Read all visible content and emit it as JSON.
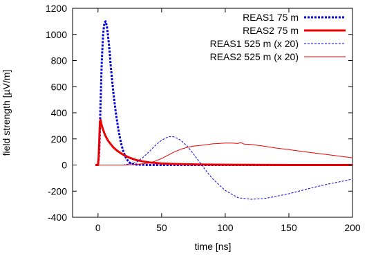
{
  "chart_data": {
    "type": "line",
    "title": "",
    "xlabel": "time [ns]",
    "ylabel": "field strength [µV/m]",
    "xlim": [
      -20,
      200
    ],
    "ylim": [
      -400,
      1200
    ],
    "xticks": [
      0,
      50,
      100,
      150,
      200
    ],
    "xtick_labels": [
      "0",
      "50",
      "100",
      "150",
      "200"
    ],
    "yticks": [
      -400,
      -200,
      0,
      200,
      400,
      600,
      800,
      1000,
      1200
    ],
    "ytick_labels": [
      "-400",
      "-200",
      "0",
      "200",
      "400",
      "600",
      "800",
      "1000",
      "1200"
    ],
    "grid": false,
    "legend_position": "top-right",
    "series": [
      {
        "name": "REAS1 75 m",
        "color": "#0000dd",
        "style": "dotted-thick",
        "x": [
          -2,
          0,
          0.5,
          1,
          1.5,
          2,
          3,
          4,
          5,
          6,
          7,
          8,
          9,
          10,
          12,
          14,
          16,
          18,
          20,
          22,
          24,
          26,
          30,
          40,
          60,
          80,
          100,
          150,
          200
        ],
        "y": [
          0,
          0,
          40,
          120,
          280,
          480,
          800,
          1000,
          1090,
          1100,
          1060,
          980,
          880,
          760,
          560,
          400,
          270,
          170,
          100,
          55,
          25,
          10,
          3,
          0,
          0,
          0,
          0,
          0,
          0
        ]
      },
      {
        "name": "REAS2 75 m",
        "color": "#ee0000",
        "style": "solid-thick",
        "x": [
          -2,
          0,
          0.5,
          1,
          1.5,
          2,
          3,
          4,
          5,
          6,
          8,
          10,
          12,
          15,
          18,
          20,
          25,
          30,
          35,
          40,
          50,
          60,
          80,
          100,
          120,
          150,
          200
        ],
        "y": [
          0,
          0,
          60,
          200,
          330,
          345,
          300,
          270,
          245,
          220,
          185,
          160,
          135,
          110,
          90,
          78,
          55,
          38,
          28,
          20,
          12,
          8,
          4,
          2,
          1,
          0,
          0
        ]
      },
      {
        "name": "REAS1 525 m (x 20)",
        "color": "#0000dd",
        "style": "dotted-thin",
        "x": [
          -2,
          20,
          30,
          35,
          40,
          45,
          50,
          55,
          58,
          60,
          65,
          70,
          75,
          80,
          85,
          90,
          100,
          110,
          120,
          130,
          140,
          150,
          160,
          170,
          180,
          190,
          200
        ],
        "y": [
          0,
          0,
          20,
          55,
          100,
          150,
          190,
          215,
          218,
          215,
          190,
          145,
          85,
          20,
          -45,
          -105,
          -195,
          -250,
          -262,
          -258,
          -240,
          -220,
          -195,
          -170,
          -148,
          -128,
          -108
        ]
      },
      {
        "name": "REAS2 525 m (x 20)",
        "color": "#ee0000",
        "style": "solid-thin",
        "x": [
          -2,
          20,
          30,
          40,
          45,
          50,
          55,
          60,
          65,
          70,
          75,
          80,
          85,
          90,
          95,
          100,
          105,
          110,
          112,
          115,
          120,
          130,
          140,
          150,
          160,
          170,
          180,
          190,
          200
        ],
        "y": [
          0,
          0,
          5,
          15,
          30,
          50,
          75,
          100,
          120,
          135,
          145,
          150,
          155,
          162,
          165,
          168,
          168,
          165,
          172,
          160,
          158,
          145,
          130,
          118,
          105,
          92,
          80,
          68,
          55
        ]
      }
    ]
  }
}
